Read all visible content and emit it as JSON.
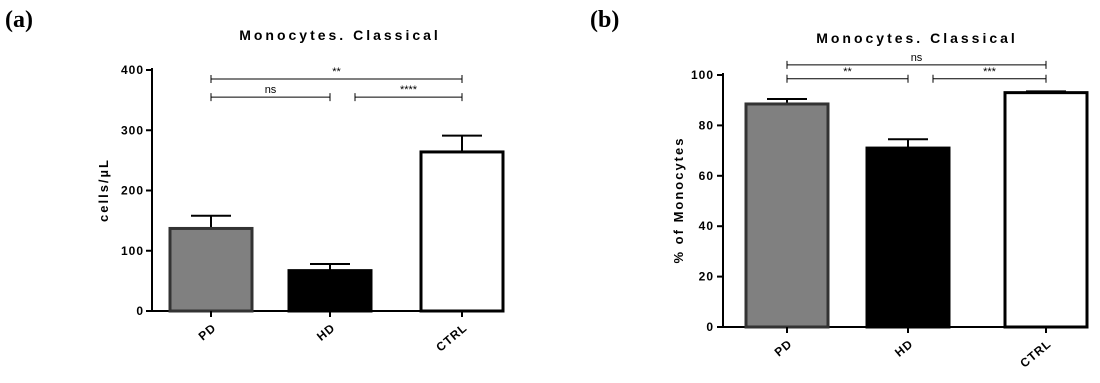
{
  "chart_data": [
    {
      "panel_label": "(a)",
      "type": "bar",
      "title": "Monocytes. Classical",
      "ylabel": "cells/µL",
      "ylim": [
        0,
        400
      ],
      "yticks": [
        "0",
        "100",
        "200",
        "300",
        "400"
      ],
      "categories": [
        "PD",
        "HD",
        "CTRL"
      ],
      "values": [
        137,
        67,
        264
      ],
      "errors": [
        21,
        11,
        27
      ],
      "bar_colors": [
        "#808080",
        "#000000",
        "#ffffff"
      ],
      "comparisons": [
        {
          "from": 0,
          "to": 2,
          "label": "**",
          "y": 385
        },
        {
          "from": 0,
          "to": 1,
          "label": "ns",
          "y": 355
        },
        {
          "from": 1,
          "to": 2,
          "label": "****",
          "y": 355
        }
      ]
    },
    {
      "panel_label": "(b)",
      "type": "bar",
      "title": "Monocytes. Classical",
      "ylabel": "% of Monocytes",
      "ylim": [
        0,
        100
      ],
      "yticks": [
        "0",
        "20",
        "40",
        "60",
        "80",
        "100"
      ],
      "categories": [
        "PD",
        "HD",
        "CTRL"
      ],
      "values": [
        88.5,
        71,
        93
      ],
      "errors": [
        2,
        3.5,
        0.5
      ],
      "bar_colors": [
        "#808080",
        "#000000",
        "#ffffff"
      ],
      "comparisons": [
        {
          "from": 0,
          "to": 2,
          "label": "ns",
          "y": 104
        },
        {
          "from": 0,
          "to": 1,
          "label": "**",
          "y": 98.5
        },
        {
          "from": 1,
          "to": 2,
          "label": "***",
          "y": 98.5
        }
      ]
    }
  ]
}
